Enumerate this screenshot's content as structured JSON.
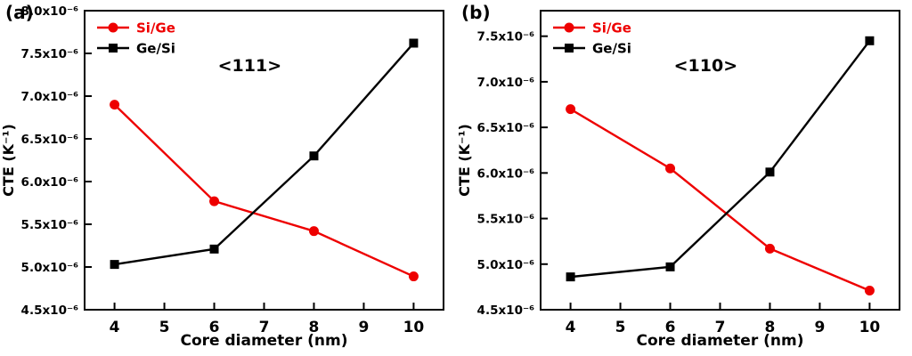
{
  "figure": {
    "background": "#ffffff",
    "axis_color": "#000000"
  },
  "chart_data": [
    {
      "type": "line",
      "panel_label": "(a)",
      "annotation": "<111>",
      "xlabel": "Core diameter (nm)",
      "ylabel": "CTE (K⁻¹)",
      "value_scale": "values are in units of 10⁻⁶ K⁻¹ as labeled on axis",
      "x": [
        4,
        6,
        8,
        10
      ],
      "series": [
        {
          "name": "Si/Ge",
          "color": "#ee0000",
          "marker": "circle",
          "values": [
            6.9,
            5.77,
            5.42,
            4.89
          ]
        },
        {
          "name": "Ge/Si",
          "color": "#000000",
          "marker": "square",
          "values": [
            5.03,
            5.21,
            6.3,
            7.62
          ]
        }
      ],
      "xlim": [
        3.4,
        10.6
      ],
      "ylim": [
        4.5,
        8.0
      ],
      "xticks": [
        4,
        5,
        6,
        7,
        8,
        9,
        10
      ],
      "yticks": [
        4.5,
        5.0,
        5.5,
        6.0,
        6.5,
        7.0,
        7.5,
        8.0
      ],
      "ytick_suffix": "x10⁻⁶",
      "legend_position": "top-left",
      "grid": false
    },
    {
      "type": "line",
      "panel_label": "(b)",
      "annotation": "<110>",
      "xlabel": "Core diameter (nm)",
      "ylabel": "CTE (K⁻¹)",
      "value_scale": "values are in units of 10⁻⁶ K⁻¹ as labeled on axis",
      "x": [
        4,
        6,
        8,
        10
      ],
      "series": [
        {
          "name": "Si/Ge",
          "color": "#ee0000",
          "marker": "circle",
          "values": [
            6.7,
            6.05,
            5.17,
            4.71
          ]
        },
        {
          "name": "Ge/Si",
          "color": "#000000",
          "marker": "square",
          "values": [
            4.86,
            4.97,
            6.01,
            7.45
          ]
        }
      ],
      "xlim": [
        3.4,
        10.6
      ],
      "ylim": [
        4.5,
        7.78
      ],
      "xticks": [
        4,
        5,
        6,
        7,
        8,
        9,
        10
      ],
      "yticks": [
        4.5,
        5.0,
        5.5,
        6.0,
        6.5,
        7.0,
        7.5
      ],
      "ytick_suffix": "x10⁻⁶",
      "legend_position": "top-left",
      "grid": false
    }
  ]
}
